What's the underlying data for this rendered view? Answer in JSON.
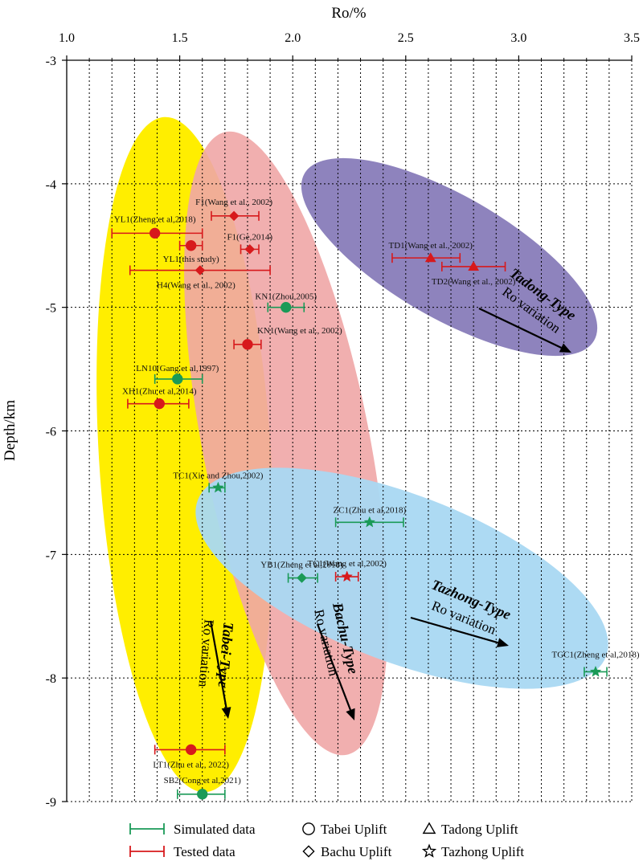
{
  "chart_data": {
    "type": "scatter",
    "xlabel": "Ro/%",
    "ylabel": "Depth/km",
    "xlim": [
      1.0,
      3.5
    ],
    "ylim": [
      -9,
      -3
    ],
    "x_ticks": [
      "1.0",
      "1.5",
      "2.0",
      "2.5",
      "3.0",
      "3.5"
    ],
    "y_ticks": [
      "-3",
      "-4",
      "-5",
      "-6",
      "-7",
      "-8",
      "-9"
    ],
    "grid": "dotted",
    "colors": {
      "simulated": "#1a9a57",
      "tested": "#d7191c",
      "tabei_zone": "#ffee00",
      "bachu_zone": "#f0a6a6",
      "tadong_zone": "#8e83bd",
      "tazhong_zone": "#a9d8f2"
    },
    "zones": [
      {
        "key": "tabei",
        "name": "Tabei-Type",
        "sub": "Ro  variation"
      },
      {
        "key": "bachu",
        "name": "Bachu-Type",
        "sub": "Ro  variation"
      },
      {
        "key": "tadong",
        "name": "Tadong-Type",
        "sub": "Ro  variation"
      },
      {
        "key": "tazhong",
        "name": "Tazhong-Type",
        "sub": "Ro  variation"
      }
    ],
    "points": [
      {
        "label": "YL1(Zheng et al,2018)",
        "x": 1.39,
        "xerr": [
          1.2,
          1.6
        ],
        "y": -4.4,
        "marker": "circle",
        "kind": "tested"
      },
      {
        "label": "F1(Wang et al., 2002)",
        "x": 1.74,
        "xerr": [
          1.64,
          1.85
        ],
        "y": -4.26,
        "marker": "diamond",
        "kind": "tested"
      },
      {
        "label": "F1(Ge,2014)",
        "x": 1.81,
        "xerr": [
          1.77,
          1.85
        ],
        "y": -4.53,
        "marker": "diamond",
        "kind": "tested"
      },
      {
        "label": "YL1(this study)",
        "x": 1.55,
        "xerr": [
          1.5,
          1.6
        ],
        "y": -4.5,
        "marker": "circle",
        "kind": "tested"
      },
      {
        "label": "H4(Wang et al., 2002)",
        "x": 1.59,
        "xerr": [
          1.28,
          1.9
        ],
        "y": -4.7,
        "marker": "diamond",
        "kind": "tested"
      },
      {
        "label": "KN1(Zhou,2005)",
        "x": 1.97,
        "xerr": [
          1.89,
          2.05
        ],
        "y": -5.0,
        "marker": "circle",
        "kind": "simulated"
      },
      {
        "label": "KN1(Wang et al., 2002)",
        "x": 1.8,
        "xerr": [
          1.74,
          1.86
        ],
        "y": -5.3,
        "marker": "circle",
        "kind": "tested"
      },
      {
        "label": "LN10(Gang et al,1997)",
        "x": 1.49,
        "xerr": [
          1.39,
          1.6
        ],
        "y": -5.58,
        "marker": "circle",
        "kind": "simulated"
      },
      {
        "label": "XH1(Zhu et al,2014)",
        "x": 1.41,
        "xerr": [
          1.27,
          1.54
        ],
        "y": -5.78,
        "marker": "circle",
        "kind": "tested"
      },
      {
        "label": "TD1(Wang et al., 2002)",
        "x": 2.61,
        "xerr": [
          2.44,
          2.74
        ],
        "y": -4.6,
        "marker": "triangle",
        "kind": "tested"
      },
      {
        "label": "TD2(Wang et al., 2002)",
        "x": 2.8,
        "xerr": [
          2.66,
          2.94
        ],
        "y": -4.67,
        "marker": "triangle",
        "kind": "tested"
      },
      {
        "label": "TC1(Xie and Zhou,2002)",
        "x": 1.67,
        "xerr": [
          1.63,
          1.7
        ],
        "y": -6.46,
        "marker": "star",
        "kind": "simulated"
      },
      {
        "label": "ZC1(Zhu et al,2018)",
        "x": 2.34,
        "xerr": [
          2.19,
          2.49
        ],
        "y": -6.74,
        "marker": "star",
        "kind": "simulated"
      },
      {
        "label": "YB1(Zheng et al,2018)",
        "x": 2.04,
        "xerr": [
          1.98,
          2.11
        ],
        "y": -7.19,
        "marker": "diamond",
        "kind": "simulated"
      },
      {
        "label": "TC1(Wang et al,2002)",
        "x": 2.24,
        "xerr": [
          2.19,
          2.29
        ],
        "y": -7.18,
        "marker": "star",
        "kind": "tested"
      },
      {
        "label": "TGC1(Zheng et al,2018)",
        "x": 3.34,
        "xerr": [
          3.29,
          3.39
        ],
        "y": -7.95,
        "marker": "star",
        "kind": "simulated"
      },
      {
        "label": "LT1(Zhu et al., 2022)",
        "x": 1.55,
        "xerr": [
          1.39,
          1.7
        ],
        "y": -8.58,
        "marker": "circle",
        "kind": "tested"
      },
      {
        "label": "SB2(Cong et al,2021)",
        "x": 1.6,
        "xerr": [
          1.49,
          1.7
        ],
        "y": -8.94,
        "marker": "circle",
        "kind": "simulated"
      }
    ],
    "legend": {
      "position": "bottom",
      "items": [
        {
          "label": "Simulated data",
          "symbol": "errbar-simulated"
        },
        {
          "label": "Tabei Uplift",
          "symbol": "circle"
        },
        {
          "label": "Tadong Uplift",
          "symbol": "triangle"
        },
        {
          "label": "Tested data",
          "symbol": "errbar-tested"
        },
        {
          "label": "Bachu Uplift",
          "symbol": "diamond"
        },
        {
          "label": "Tazhong Uplift",
          "symbol": "star"
        }
      ]
    }
  }
}
